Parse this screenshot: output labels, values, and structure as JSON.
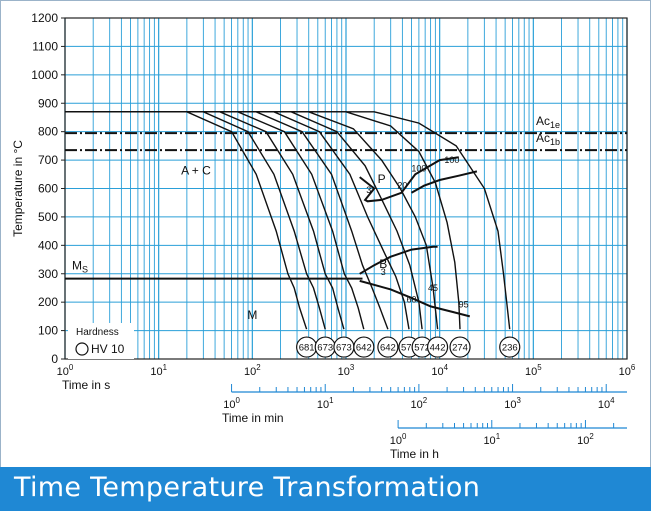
{
  "banner": {
    "title": "Time Temperature Transformation"
  },
  "chart_data": {
    "type": "line",
    "x_scale": "log",
    "xlim_s": [
      1,
      1000000
    ],
    "ylim": [
      0,
      1200
    ],
    "grid": true,
    "ylabel": "Temperature in °C",
    "xlabel": "Time in s",
    "y_ticks": [
      "0",
      "100",
      "200",
      "300",
      "400",
      "500",
      "600",
      "700",
      "800",
      "900",
      "1000",
      "1100",
      "1200"
    ],
    "x_ticks": [
      {
        "base": "10",
        "exp": "0",
        "value": 1
      },
      {
        "base": "10",
        "exp": "1",
        "value": 10
      },
      {
        "base": "10",
        "exp": "2",
        "value": 100
      },
      {
        "base": "10",
        "exp": "3",
        "value": 1000
      },
      {
        "base": "10",
        "exp": "4",
        "value": 10000
      },
      {
        "base": "10",
        "exp": "5",
        "value": 100000
      },
      {
        "base": "10",
        "exp": "6",
        "value": 1000000
      }
    ],
    "min_axis": {
      "label": "Time in min",
      "ticks": [
        {
          "base": "10",
          "exp": "0",
          "value": 1
        },
        {
          "base": "10",
          "exp": "1",
          "value": 10
        },
        {
          "base": "10",
          "exp": "2",
          "value": 100
        },
        {
          "base": "10",
          "exp": "3",
          "value": 1000
        },
        {
          "base": "10",
          "exp": "4",
          "value": 10000
        }
      ]
    },
    "h_axis": {
      "label": "Time in h",
      "ticks": [
        {
          "base": "10",
          "exp": "0",
          "value": 1
        },
        {
          "base": "10",
          "exp": "1",
          "value": 10
        },
        {
          "base": "10",
          "exp": "2",
          "value": 100
        }
      ]
    },
    "critical_lines": [
      {
        "base": "Ac",
        "sub": "1e",
        "temperature": 795
      },
      {
        "base": "Ac",
        "sub": "1b",
        "temperature": 735
      }
    ],
    "region_labels": [
      {
        "text": "A + C",
        "x": 25,
        "y": 650
      },
      {
        "text": "P",
        "x": 2400,
        "y": 620
      },
      {
        "text": "B",
        "x": 2500,
        "y": 320
      },
      {
        "text": "M",
        "x": 100,
        "y": 140
      }
    ],
    "ms": {
      "base": "M",
      "sub": "S",
      "temperature": 283,
      "x_end": 1500
    },
    "pearlite_region": {
      "start": [
        [
          1400,
          640
        ],
        [
          2000,
          600
        ],
        [
          1600,
          560
        ],
        [
          1700,
          555
        ],
        [
          2400,
          560
        ],
        [
          3900,
          585
        ],
        [
          5500,
          650
        ],
        [
          10000,
          700
        ],
        [
          16000,
          710
        ]
      ],
      "end": [
        [
          5000,
          585
        ],
        [
          6800,
          610
        ],
        [
          10000,
          630
        ],
        [
          16000,
          645
        ],
        [
          25000,
          660
        ]
      ],
      "labels": [
        {
          "text": "3",
          "x": 1750,
          "y": 585
        },
        {
          "text": "20",
          "x": 4000,
          "y": 600
        },
        {
          "text": "100",
          "x": 6000,
          "y": 660
        },
        {
          "text": "100",
          "x": 13500,
          "y": 690
        }
      ]
    },
    "bainite_region": {
      "start": [
        [
          1400,
          300
        ],
        [
          2000,
          330
        ],
        [
          3000,
          360
        ],
        [
          5000,
          385
        ],
        [
          8500,
          395
        ],
        [
          9500,
          395
        ]
      ],
      "finish": [
        [
          1400,
          275
        ],
        [
          3000,
          245
        ],
        [
          5000,
          215
        ],
        [
          8000,
          185
        ],
        [
          14000,
          165
        ],
        [
          21000,
          150
        ]
      ],
      "labels": [
        {
          "text": "3",
          "x": 2500,
          "y": 295
        },
        {
          "text": "45",
          "x": 8500,
          "y": 240
        },
        {
          "text": "60",
          "x": 5000,
          "y": 198
        },
        {
          "text": "95",
          "x": 18000,
          "y": 182
        }
      ]
    },
    "cooling_curves": [
      {
        "hardness": "681",
        "points": [
          [
            1,
            870
          ],
          [
            20,
            870
          ],
          [
            60,
            800
          ],
          [
            110,
            650
          ],
          [
            180,
            450
          ],
          [
            240,
            300
          ],
          [
            280,
            250
          ],
          [
            320,
            180
          ],
          [
            380,
            105
          ]
        ]
      },
      {
        "hardness": "673",
        "points": [
          [
            1,
            870
          ],
          [
            30,
            870
          ],
          [
            90,
            800
          ],
          [
            170,
            650
          ],
          [
            280,
            450
          ],
          [
            380,
            300
          ],
          [
            450,
            250
          ],
          [
            520,
            180
          ],
          [
            600,
            105
          ]
        ]
      },
      {
        "hardness": "673",
        "points": [
          [
            1,
            870
          ],
          [
            45,
            870
          ],
          [
            140,
            800
          ],
          [
            270,
            650
          ],
          [
            450,
            450
          ],
          [
            600,
            300
          ],
          [
            720,
            250
          ],
          [
            820,
            180
          ],
          [
            950,
            105
          ]
        ]
      },
      {
        "hardness": "642",
        "points": [
          [
            1,
            870
          ],
          [
            70,
            870
          ],
          [
            220,
            800
          ],
          [
            430,
            650
          ],
          [
            720,
            450
          ],
          [
            960,
            300
          ],
          [
            1150,
            250
          ],
          [
            1350,
            180
          ],
          [
            1550,
            105
          ]
        ]
      },
      {
        "hardness": "642",
        "points": [
          [
            1,
            870
          ],
          [
            110,
            870
          ],
          [
            340,
            800
          ],
          [
            700,
            650
          ],
          [
            1150,
            450
          ],
          [
            1500,
            330
          ],
          [
            1900,
            250
          ],
          [
            2300,
            180
          ],
          [
            2800,
            105
          ]
        ]
      },
      {
        "hardness": "572",
        "points": [
          [
            1,
            870
          ],
          [
            170,
            870
          ],
          [
            520,
            800
          ],
          [
            1100,
            650
          ],
          [
            1700,
            500
          ],
          [
            2600,
            370
          ],
          [
            3400,
            290
          ],
          [
            4200,
            200
          ],
          [
            4700,
            105
          ]
        ]
      },
      {
        "hardness": "572",
        "points": [
          [
            1,
            870
          ],
          [
            260,
            870
          ],
          [
            800,
            800
          ],
          [
            1600,
            680
          ],
          [
            2500,
            550
          ],
          [
            3500,
            450
          ],
          [
            4800,
            330
          ],
          [
            6000,
            200
          ],
          [
            6500,
            105
          ]
        ]
      },
      {
        "hardness": "442",
        "points": [
          [
            1,
            870
          ],
          [
            400,
            870
          ],
          [
            1200,
            810
          ],
          [
            2400,
            700
          ],
          [
            3800,
            600
          ],
          [
            5500,
            500
          ],
          [
            7200,
            400
          ],
          [
            8500,
            250
          ],
          [
            9500,
            105
          ]
        ]
      },
      {
        "hardness": "274",
        "points": [
          [
            1,
            870
          ],
          [
            1000,
            870
          ],
          [
            3000,
            820
          ],
          [
            6000,
            730
          ],
          [
            9000,
            620
          ],
          [
            12000,
            480
          ],
          [
            14500,
            340
          ],
          [
            16000,
            200
          ],
          [
            16500,
            105
          ]
        ]
      },
      {
        "hardness": "236",
        "points": [
          [
            1,
            870
          ],
          [
            2000,
            870
          ],
          [
            6000,
            830
          ],
          [
            15000,
            750
          ],
          [
            30000,
            600
          ],
          [
            42000,
            450
          ],
          [
            48000,
            300
          ],
          [
            52000,
            200
          ],
          [
            56000,
            105
          ]
        ]
      }
    ],
    "legend": {
      "title": "Hardness",
      "item": "HV 10"
    }
  }
}
